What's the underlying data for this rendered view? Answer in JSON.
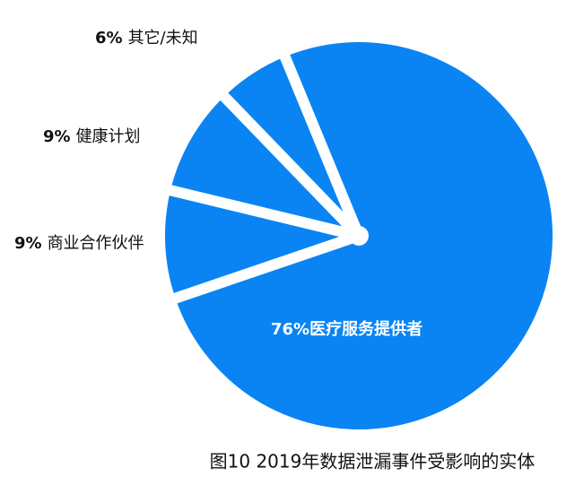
{
  "chart_data": {
    "type": "pie",
    "title": "图10 2019年数据泄漏事件受影响的实体",
    "categories": [
      "医疗服务提供者",
      "商业合作伙伴",
      "健康计划",
      "其它/未知"
    ],
    "values": [
      76,
      9,
      9,
      6
    ],
    "value_labels": [
      "76%",
      "9%",
      "9%",
      "6%"
    ],
    "color": "#0a84f3"
  }
}
